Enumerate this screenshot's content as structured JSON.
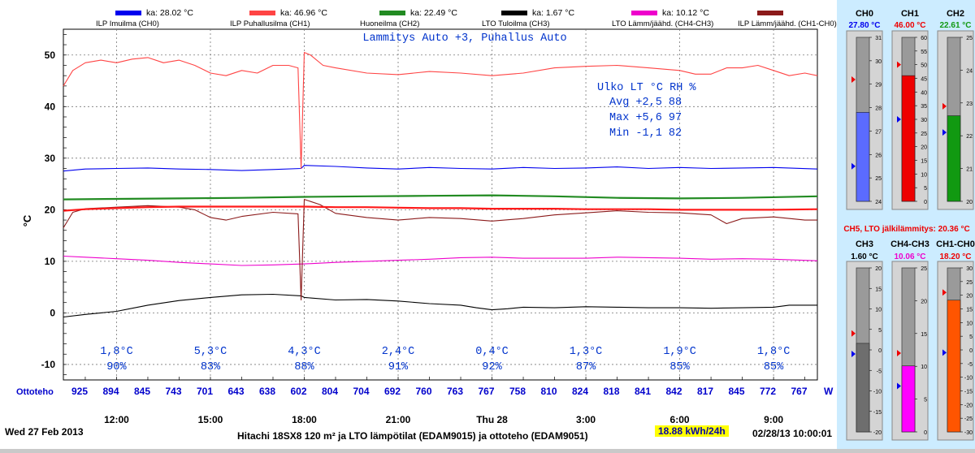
{
  "legend": [
    {
      "label": "ILP Imuilma (CH0)",
      "ka": "ka: 28.02 °C",
      "color": "#0000ee"
    },
    {
      "label": "ILP Puhallusilma (CH1)",
      "ka": "ka: 46.96 °C",
      "color": "#ff4444"
    },
    {
      "label": "Huoneilma (CH2)",
      "ka": "ka: 22.49 °C",
      "color": "#228b22"
    },
    {
      "label": "LTO Tuloilma (CH3)",
      "ka": "ka: 1.67 °C",
      "color": "#000000"
    },
    {
      "label": "LTO Lämm/jäähd. (CH4-CH3)",
      "ka": "ka: 10.12 °C",
      "color": "#ee00cc"
    },
    {
      "label": "ILP Lämm/jäähd. (CH1-CH0)",
      "ka": "",
      "color": "#8b1a1a"
    }
  ],
  "chart_data": {
    "type": "line",
    "title": "Lammitys Auto +3, Puhallus Auto",
    "ylabel": "°C",
    "ylim": [
      -13,
      55
    ],
    "yticks": [
      -10,
      0,
      10,
      20,
      30,
      40,
      50
    ],
    "xlim": [
      10.3,
      34.4
    ],
    "xticks": [
      {
        "x": 12,
        "label": "12:00"
      },
      {
        "x": 15,
        "label": "15:00"
      },
      {
        "x": 18,
        "label": "18:00"
      },
      {
        "x": 21,
        "label": "21:00"
      },
      {
        "x": 24,
        "label": "Thu 28"
      },
      {
        "x": 27,
        "label": "3:00"
      },
      {
        "x": 30,
        "label": "6:00"
      },
      {
        "x": 33,
        "label": "9:00"
      }
    ],
    "grid": true,
    "series": [
      {
        "name": "ILP Imuilma (CH0)",
        "color": "#0000ee",
        "x": [
          10.3,
          11,
          12,
          13,
          14,
          15,
          16,
          17,
          17.9,
          18,
          19,
          20,
          21,
          22,
          23,
          24,
          25,
          26,
          27,
          28,
          29,
          30,
          31,
          32,
          33,
          34.4
        ],
        "y": [
          27.5,
          27.9,
          28.0,
          28.1,
          27.9,
          27.8,
          27.6,
          27.8,
          28.0,
          28.6,
          28.4,
          28.1,
          27.9,
          28.2,
          28.0,
          27.9,
          28.2,
          28.0,
          28.1,
          28.3,
          28.0,
          28.2,
          28.0,
          28.1,
          28.2,
          27.9
        ]
      },
      {
        "name": "ILP Puhallusilma (CH1)",
        "color": "#ff4444",
        "x": [
          10.3,
          10.6,
          11,
          11.5,
          12,
          12.5,
          13,
          13.5,
          14,
          14.5,
          15,
          15.5,
          16,
          16.5,
          17,
          17.5,
          17.8,
          17.9,
          18,
          18.2,
          18.6,
          19,
          20,
          21,
          22,
          23,
          24,
          25,
          26,
          27,
          28,
          29,
          30,
          30.5,
          31,
          31.5,
          32,
          32.5,
          33,
          33.5,
          34,
          34.4
        ],
        "y": [
          44,
          47,
          48.5,
          49,
          48.5,
          49.2,
          49.5,
          48.5,
          49,
          48,
          46.5,
          46,
          47,
          46.5,
          48,
          48,
          47.5,
          28,
          50.5,
          50,
          48,
          47.5,
          46.5,
          46.2,
          46.8,
          46.5,
          46,
          46.5,
          47.5,
          47.8,
          48,
          47.5,
          47,
          46.3,
          46.3,
          47.5,
          47.5,
          48,
          47,
          46,
          46.5,
          46
        ]
      },
      {
        "name": "Huoneilma (CH2)",
        "color": "#228b22",
        "x": [
          10.3,
          12,
          14,
          16,
          18,
          20,
          22,
          24,
          26,
          28,
          30,
          32,
          34.4
        ],
        "y": [
          22.0,
          22.1,
          22.2,
          22.3,
          22.5,
          22.6,
          22.7,
          22.8,
          22.6,
          22.3,
          22.2,
          22.3,
          22.6
        ]
      },
      {
        "name": "LTO Tuloilma (CH3)",
        "color": "#000000",
        "x": [
          10.3,
          11,
          12,
          13,
          14,
          15,
          16,
          17,
          17.9,
          18,
          19,
          20,
          21,
          22,
          23,
          23.5,
          24,
          24.5,
          25,
          26,
          27,
          28,
          29,
          30,
          31,
          32,
          33,
          33.5,
          34.4
        ],
        "y": [
          -0.8,
          -0.3,
          0.3,
          1.5,
          2.4,
          3.0,
          3.5,
          3.6,
          3.3,
          3.0,
          2.5,
          2.6,
          2.3,
          1.8,
          1.5,
          1.0,
          0.6,
          0.8,
          1.1,
          1.0,
          1.2,
          1.1,
          1.0,
          1.0,
          0.9,
          1.0,
          1.1,
          1.5,
          1.5
        ]
      },
      {
        "name": "LTO Lämm/jäähd. (CH4-CH3)",
        "color": "#ee00cc",
        "x": [
          10.3,
          11,
          12,
          13,
          14,
          15,
          16,
          17,
          18,
          19,
          20,
          21,
          22,
          23,
          24,
          25,
          26,
          27,
          28,
          29,
          30,
          31,
          32,
          33,
          34.4
        ],
        "y": [
          11.0,
          10.8,
          10.5,
          10.2,
          9.8,
          9.5,
          9.2,
          9.3,
          9.5,
          9.8,
          10.0,
          10.2,
          10.4,
          10.7,
          10.8,
          10.6,
          10.6,
          10.6,
          10.8,
          10.7,
          10.6,
          10.4,
          10.5,
          10.4,
          10.1
        ]
      },
      {
        "name": "ILP Lämm/jäähd. (CH1-CH0)",
        "color": "#8b1a1a",
        "x": [
          10.3,
          10.6,
          11,
          12,
          13,
          14,
          14.5,
          15,
          15.5,
          16,
          17,
          17.8,
          17.9,
          18,
          18.5,
          19,
          20,
          21,
          22,
          23,
          24,
          25,
          26,
          27,
          28,
          29,
          30,
          31,
          31.5,
          32,
          33,
          34,
          34.4
        ],
        "y": [
          16.5,
          19.5,
          20.2,
          20.5,
          20.8,
          20.5,
          20.0,
          18.5,
          18.0,
          18.7,
          19.5,
          19.2,
          2.5,
          22.0,
          21.0,
          19.3,
          18.5,
          18.0,
          18.5,
          18.3,
          17.8,
          18.3,
          19.0,
          19.4,
          19.8,
          19.5,
          19.4,
          19.0,
          17.3,
          18.3,
          18.6,
          18.0,
          18.0
        ]
      },
      {
        "name": "CH5",
        "color": "#ff1a1a",
        "x": [
          10.3,
          11,
          12,
          13,
          14,
          15,
          16,
          17,
          18,
          19,
          20,
          21,
          22,
          23,
          24,
          25,
          26,
          27,
          28,
          29,
          30,
          31,
          32,
          33,
          34.4
        ],
        "y": [
          19.8,
          20.1,
          20.3,
          20.5,
          20.6,
          20.6,
          20.6,
          20.6,
          20.6,
          20.5,
          20.5,
          20.4,
          20.3,
          20.3,
          20.2,
          20.2,
          20.2,
          20.1,
          20.1,
          20.1,
          20.0,
          20.0,
          20.0,
          20.0,
          20.1
        ]
      }
    ]
  },
  "stats": {
    "header": "Ulko LT °C RH %",
    "rows": [
      "Avg +2,5  88",
      "Max +5,6  97",
      "Min -1,1  82"
    ]
  },
  "outdoor": [
    {
      "temp": "1,8°C",
      "rh": "90%",
      "x": 12
    },
    {
      "temp": "5,3°C",
      "rh": "83%",
      "x": 15
    },
    {
      "temp": "4,3°C",
      "rh": "88%",
      "x": 18
    },
    {
      "temp": "2,4°C",
      "rh": "91%",
      "x": 21
    },
    {
      "temp": "0,4°C",
      "rh": "92%",
      "x": 24
    },
    {
      "temp": "1,3°C",
      "rh": "87%",
      "x": 27
    },
    {
      "temp": "1,9°C",
      "rh": "85%",
      "x": 30
    },
    {
      "temp": "1,8°C",
      "rh": "85%",
      "x": 33
    }
  ],
  "ottoteho": {
    "label": "Ottoteho",
    "unit": "W",
    "values": [
      "925",
      "894",
      "845",
      "743",
      "701",
      "643",
      "638",
      "602",
      "804",
      "704",
      "692",
      "760",
      "763",
      "767",
      "758",
      "810",
      "824",
      "818",
      "841",
      "842",
      "817",
      "845",
      "772",
      "767"
    ]
  },
  "footer": {
    "date": "Wed 27 Feb 2013",
    "source": "Hitachi 18SX8 120 m² ja LTO lämpötilat (EDAM9015) ja ottoteho (EDAM9051)",
    "energy": "18.88 kWh/24h",
    "timestamp": "02/28/13 10:00:01"
  },
  "ch5_label": "CH5, LTO jälkilämmitys: 20.36 °C",
  "gauges": [
    {
      "name": "CH0",
      "value": "27.80 °C",
      "numeric": 27.8,
      "fill": "#5b6bff",
      "color": "#0000ee",
      "min": 24,
      "max": 31,
      "ticks": [
        24,
        25,
        26,
        27,
        28,
        29,
        30,
        31
      ],
      "red_mark": 29.2,
      "blue_mark": 25.5
    },
    {
      "name": "CH1",
      "value": "46.00 °C",
      "numeric": 46.0,
      "fill": "#ee0000",
      "color": "#ee0000",
      "min": 0,
      "max": 60,
      "ticks": [
        0,
        5,
        10,
        15,
        20,
        25,
        30,
        35,
        40,
        45,
        50,
        55,
        60
      ],
      "red_mark": 50,
      "blue_mark": 30
    },
    {
      "name": "CH2",
      "value": "22.61 °C",
      "numeric": 22.61,
      "fill": "#119911",
      "color": "#119911",
      "min": 20,
      "max": 25,
      "ticks": [
        20,
        21,
        22,
        23,
        24,
        25
      ],
      "red_mark": 22.9,
      "blue_mark": 22.1
    },
    {
      "name": "CH3",
      "value": "1.60 °C",
      "numeric": 1.6,
      "fill": "#6e6e6e",
      "color": "#000000",
      "min": -20,
      "max": 20,
      "ticks": [
        -20,
        -15,
        -10,
        -5,
        0,
        5,
        10,
        15,
        20
      ],
      "red_mark": 4,
      "blue_mark": -1
    },
    {
      "name": "CH4-CH3",
      "value": "10.06 °C",
      "numeric": 10.06,
      "fill": "#ff00ff",
      "color": "#ee00cc",
      "min": 0,
      "max": 25,
      "ticks": [
        0,
        5,
        10,
        15,
        20,
        25
      ],
      "red_mark": 12,
      "blue_mark": 7
    },
    {
      "name": "CH1-CH0",
      "value": "18.20 °C",
      "numeric": 18.2,
      "fill": "#ff5500",
      "color": "#ee0000",
      "min": -30,
      "max": 30,
      "ticks": [
        -30,
        -25,
        -20,
        -15,
        -10,
        -5,
        0,
        5,
        10,
        15,
        20,
        25,
        30
      ],
      "red_mark": 21,
      "blue_mark": -1
    }
  ]
}
